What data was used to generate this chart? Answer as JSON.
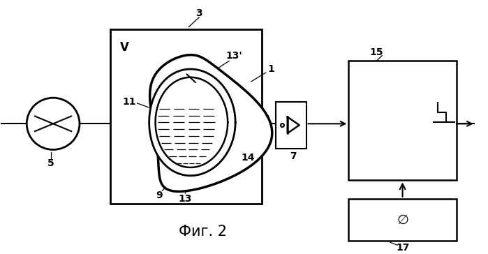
{
  "bg_color": "#ffffff",
  "title": "Фиг. 2",
  "title_fontsize": 15,
  "fig_w": 6.99,
  "fig_h": 3.64,
  "dpi": 100
}
